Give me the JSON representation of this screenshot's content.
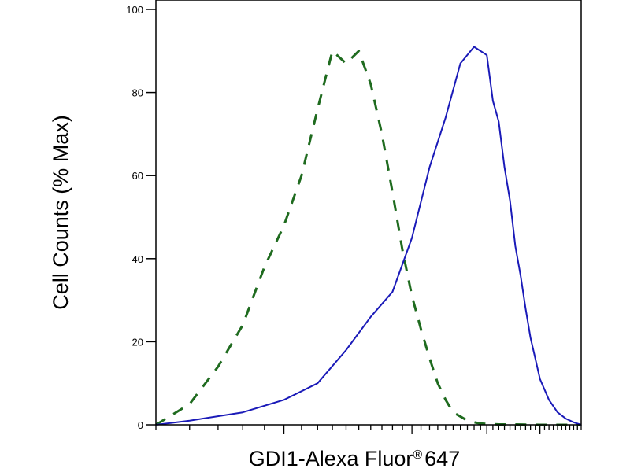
{
  "chart_data": {
    "type": "line",
    "title": "",
    "xlabel": "GDI1-Alexa Fluor",
    "xlabel_mark": "®",
    "xlabel_suffix": "647",
    "ylabel": "Cell Counts (% Max)",
    "xscale": "log",
    "xlim": [
      0.5,
      5
    ],
    "ylim": [
      0,
      100
    ],
    "yticks": [
      0,
      20,
      40,
      60,
      80,
      100
    ],
    "ytick_labels": [
      "0",
      "20",
      "40",
      "60",
      "80",
      "100"
    ],
    "xticks_major": [
      1,
      2,
      3,
      4
    ],
    "grid": false,
    "legend": "none",
    "series": [
      {
        "style": "dashed",
        "color": "#1f6b1f",
        "x": [
          0.5,
          0.6,
          0.7,
          0.8,
          0.9,
          1.0,
          1.1,
          1.2,
          1.3,
          1.4,
          1.5,
          1.6,
          1.7,
          1.8,
          1.9,
          2.0,
          2.1,
          2.2,
          2.3,
          2.4,
          2.5,
          2.6,
          2.7,
          2.8,
          2.9,
          3.0,
          3.2,
          3.5,
          4.0,
          4.5,
          5.0
        ],
        "y": [
          0,
          5,
          14,
          24,
          38,
          48,
          60,
          76,
          90,
          87,
          90,
          82,
          70,
          56,
          42,
          31,
          23,
          16,
          10,
          6,
          3,
          2,
          1,
          0.6,
          0.3,
          0.2,
          0.1,
          0.1,
          0,
          0,
          0
        ]
      },
      {
        "style": "solid",
        "color": "#1a1ab8",
        "x": [
          0.5,
          0.6,
          0.8,
          1.0,
          1.2,
          1.4,
          1.6,
          1.8,
          2.0,
          2.2,
          2.4,
          2.6,
          2.8,
          3.0,
          3.1,
          3.2,
          3.3,
          3.4,
          3.5,
          3.6,
          3.7,
          3.8,
          3.9,
          4.0,
          4.2,
          4.4,
          4.6,
          4.8,
          5.0
        ],
        "y": [
          0,
          1,
          3,
          6,
          10,
          18,
          26,
          32,
          45,
          62,
          74,
          87,
          91,
          89,
          78,
          73,
          62,
          54,
          43,
          36,
          28,
          21,
          16,
          11,
          6,
          3,
          1.5,
          0.6,
          0
        ]
      }
    ]
  }
}
